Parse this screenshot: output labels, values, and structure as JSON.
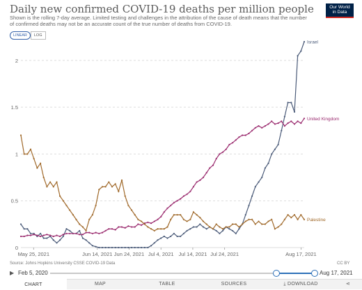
{
  "header": {
    "title": "Daily new confirmed COVID-19 deaths per million people",
    "subtitle": "Shown is the rolling 7-day average. Limited testing and challenges in the attribution of the cause of death means that the number of confirmed deaths may not be an accurate count of the true number of deaths from COVID-19.",
    "logo_line1": "Our World",
    "logo_line2": "in Data"
  },
  "scale_toggle": {
    "linear": "LINEAR",
    "log": "LOG",
    "selected": "linear"
  },
  "chart_data": {
    "type": "line",
    "x_ticks": [
      "May 25, 2021",
      "Jun 14, 2021",
      "Jun 24, 2021",
      "Jul 4, 2021",
      "Jul 14, 2021",
      "Jul 24, 2021",
      "Aug 17, 2021"
    ],
    "y_ticks": [
      "0",
      "0.5",
      "1",
      "1.5",
      "2"
    ],
    "x_start": "2021-05-21",
    "x_end": "2021-08-18",
    "ylim": [
      0,
      2.2
    ],
    "grid": "horizontal dashed",
    "series": [
      {
        "name": "Israel",
        "color": "#4a5a78",
        "values": [
          0.25,
          0.2,
          0.2,
          0.15,
          0.15,
          0.12,
          0.15,
          0.1,
          0.1,
          0.12,
          0.08,
          0.05,
          0.08,
          0.12,
          0.2,
          0.18,
          0.15,
          0.15,
          0.18,
          0.1,
          0.08,
          0.05,
          0.02,
          0.01,
          0,
          0,
          0,
          0,
          0,
          0,
          0,
          0,
          0,
          0,
          0,
          0,
          0,
          0,
          0,
          0,
          0.02,
          0.05,
          0.08,
          0.1,
          0.12,
          0.1,
          0.12,
          0.15,
          0.12,
          0.12,
          0.15,
          0.18,
          0.2,
          0.22,
          0.22,
          0.25,
          0.22,
          0.2,
          0.22,
          0.2,
          0.18,
          0.15,
          0.18,
          0.22,
          0.2,
          0.18,
          0.15,
          0.2,
          0.25,
          0.35,
          0.45,
          0.55,
          0.65,
          0.7,
          0.75,
          0.85,
          0.9,
          1.0,
          1.05,
          1.1,
          1.25,
          1.4,
          1.55,
          1.55,
          1.45,
          2.05,
          2.1,
          2.2
        ]
      },
      {
        "name": "United Kingdom",
        "color": "#9a2a6e",
        "values": [
          0.12,
          0.12,
          0.13,
          0.13,
          0.14,
          0.13,
          0.12,
          0.13,
          0.14,
          0.13,
          0.12,
          0.13,
          0.12,
          0.14,
          0.15,
          0.15,
          0.15,
          0.15,
          0.14,
          0.14,
          0.16,
          0.16,
          0.15,
          0.16,
          0.15,
          0.16,
          0.18,
          0.2,
          0.2,
          0.19,
          0.22,
          0.22,
          0.21,
          0.23,
          0.22,
          0.22,
          0.25,
          0.24,
          0.26,
          0.27,
          0.26,
          0.28,
          0.3,
          0.33,
          0.38,
          0.42,
          0.45,
          0.48,
          0.5,
          0.52,
          0.55,
          0.57,
          0.6,
          0.65,
          0.7,
          0.72,
          0.75,
          0.8,
          0.85,
          0.88,
          0.95,
          1.0,
          1.02,
          1.05,
          1.1,
          1.12,
          1.15,
          1.18,
          1.2,
          1.2,
          1.22,
          1.25,
          1.28,
          1.3,
          1.28,
          1.3,
          1.32,
          1.35,
          1.32,
          1.33,
          1.35,
          1.3,
          1.33,
          1.35,
          1.32,
          1.35,
          1.33,
          1.38
        ]
      },
      {
        "name": "Palestine",
        "color": "#a0692a",
        "values": [
          1.2,
          1.0,
          1.0,
          1.05,
          0.95,
          0.85,
          0.9,
          0.75,
          0.65,
          0.7,
          0.65,
          0.7,
          0.55,
          0.5,
          0.45,
          0.4,
          0.35,
          0.3,
          0.25,
          0.22,
          0.18,
          0.3,
          0.35,
          0.45,
          0.62,
          0.65,
          0.65,
          0.7,
          0.65,
          0.68,
          0.6,
          0.72,
          0.55,
          0.45,
          0.4,
          0.35,
          0.3,
          0.28,
          0.25,
          0.22,
          0.2,
          0.18,
          0.2,
          0.2,
          0.2,
          0.22,
          0.3,
          0.35,
          0.35,
          0.35,
          0.3,
          0.28,
          0.3,
          0.38,
          0.35,
          0.32,
          0.28,
          0.25,
          0.22,
          0.2,
          0.25,
          0.22,
          0.2,
          0.22,
          0.22,
          0.25,
          0.25,
          0.22,
          0.25,
          0.28,
          0.3,
          0.3,
          0.25,
          0.28,
          0.25,
          0.25,
          0.28,
          0.3,
          0.2,
          0.22,
          0.25,
          0.3,
          0.35,
          0.32,
          0.35,
          0.3,
          0.35,
          0.3
        ]
      }
    ]
  },
  "footer": {
    "source": "Source: Johns Hopkins University CSSE COVID-19 Data",
    "license": "CC BY"
  },
  "timeline": {
    "start_label": "Feb 5, 2020",
    "end_label": "Aug 17, 2021",
    "play_icon": "play-icon"
  },
  "tabs": {
    "chart": "CHART",
    "map": "MAP",
    "table": "TABLE",
    "sources": "SOURCES",
    "download": "⤓ DOWNLOAD",
    "share_icon": "share-icon"
  }
}
